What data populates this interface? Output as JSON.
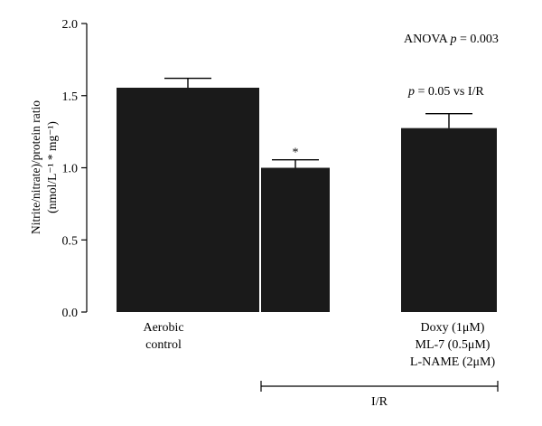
{
  "chart_data": {
    "type": "bar",
    "categories": [
      [
        "Aerobic",
        "control"
      ],
      [
        ""
      ],
      [
        "Doxy (1μM)",
        "ML-7 (0.5μM)",
        "L-NAME (2μM)"
      ]
    ],
    "values": [
      1.555,
      1.0,
      1.275
    ],
    "errors": [
      0.065,
      0.055,
      0.1
    ],
    "bar_color": "#1a1a1a",
    "ylim": [
      0,
      2.0
    ],
    "yticks": [
      "0.0",
      "0.5",
      "1.0",
      "1.5",
      "2.0"
    ],
    "ylabel_line1": "Nitrite/nitrate)/protein ratio",
    "ylabel_line2": "(nmol/L⁻¹ * mg⁻¹)",
    "annotations": {
      "anova_prefix": "ANOVA ",
      "anova_p": "p",
      "anova_value": " = 0.003",
      "pair_p": "p",
      "pair_text": " = 0.05 vs I/R",
      "star": "*"
    },
    "group_bracket_label": "I/R",
    "grid": false,
    "legend": "none"
  }
}
